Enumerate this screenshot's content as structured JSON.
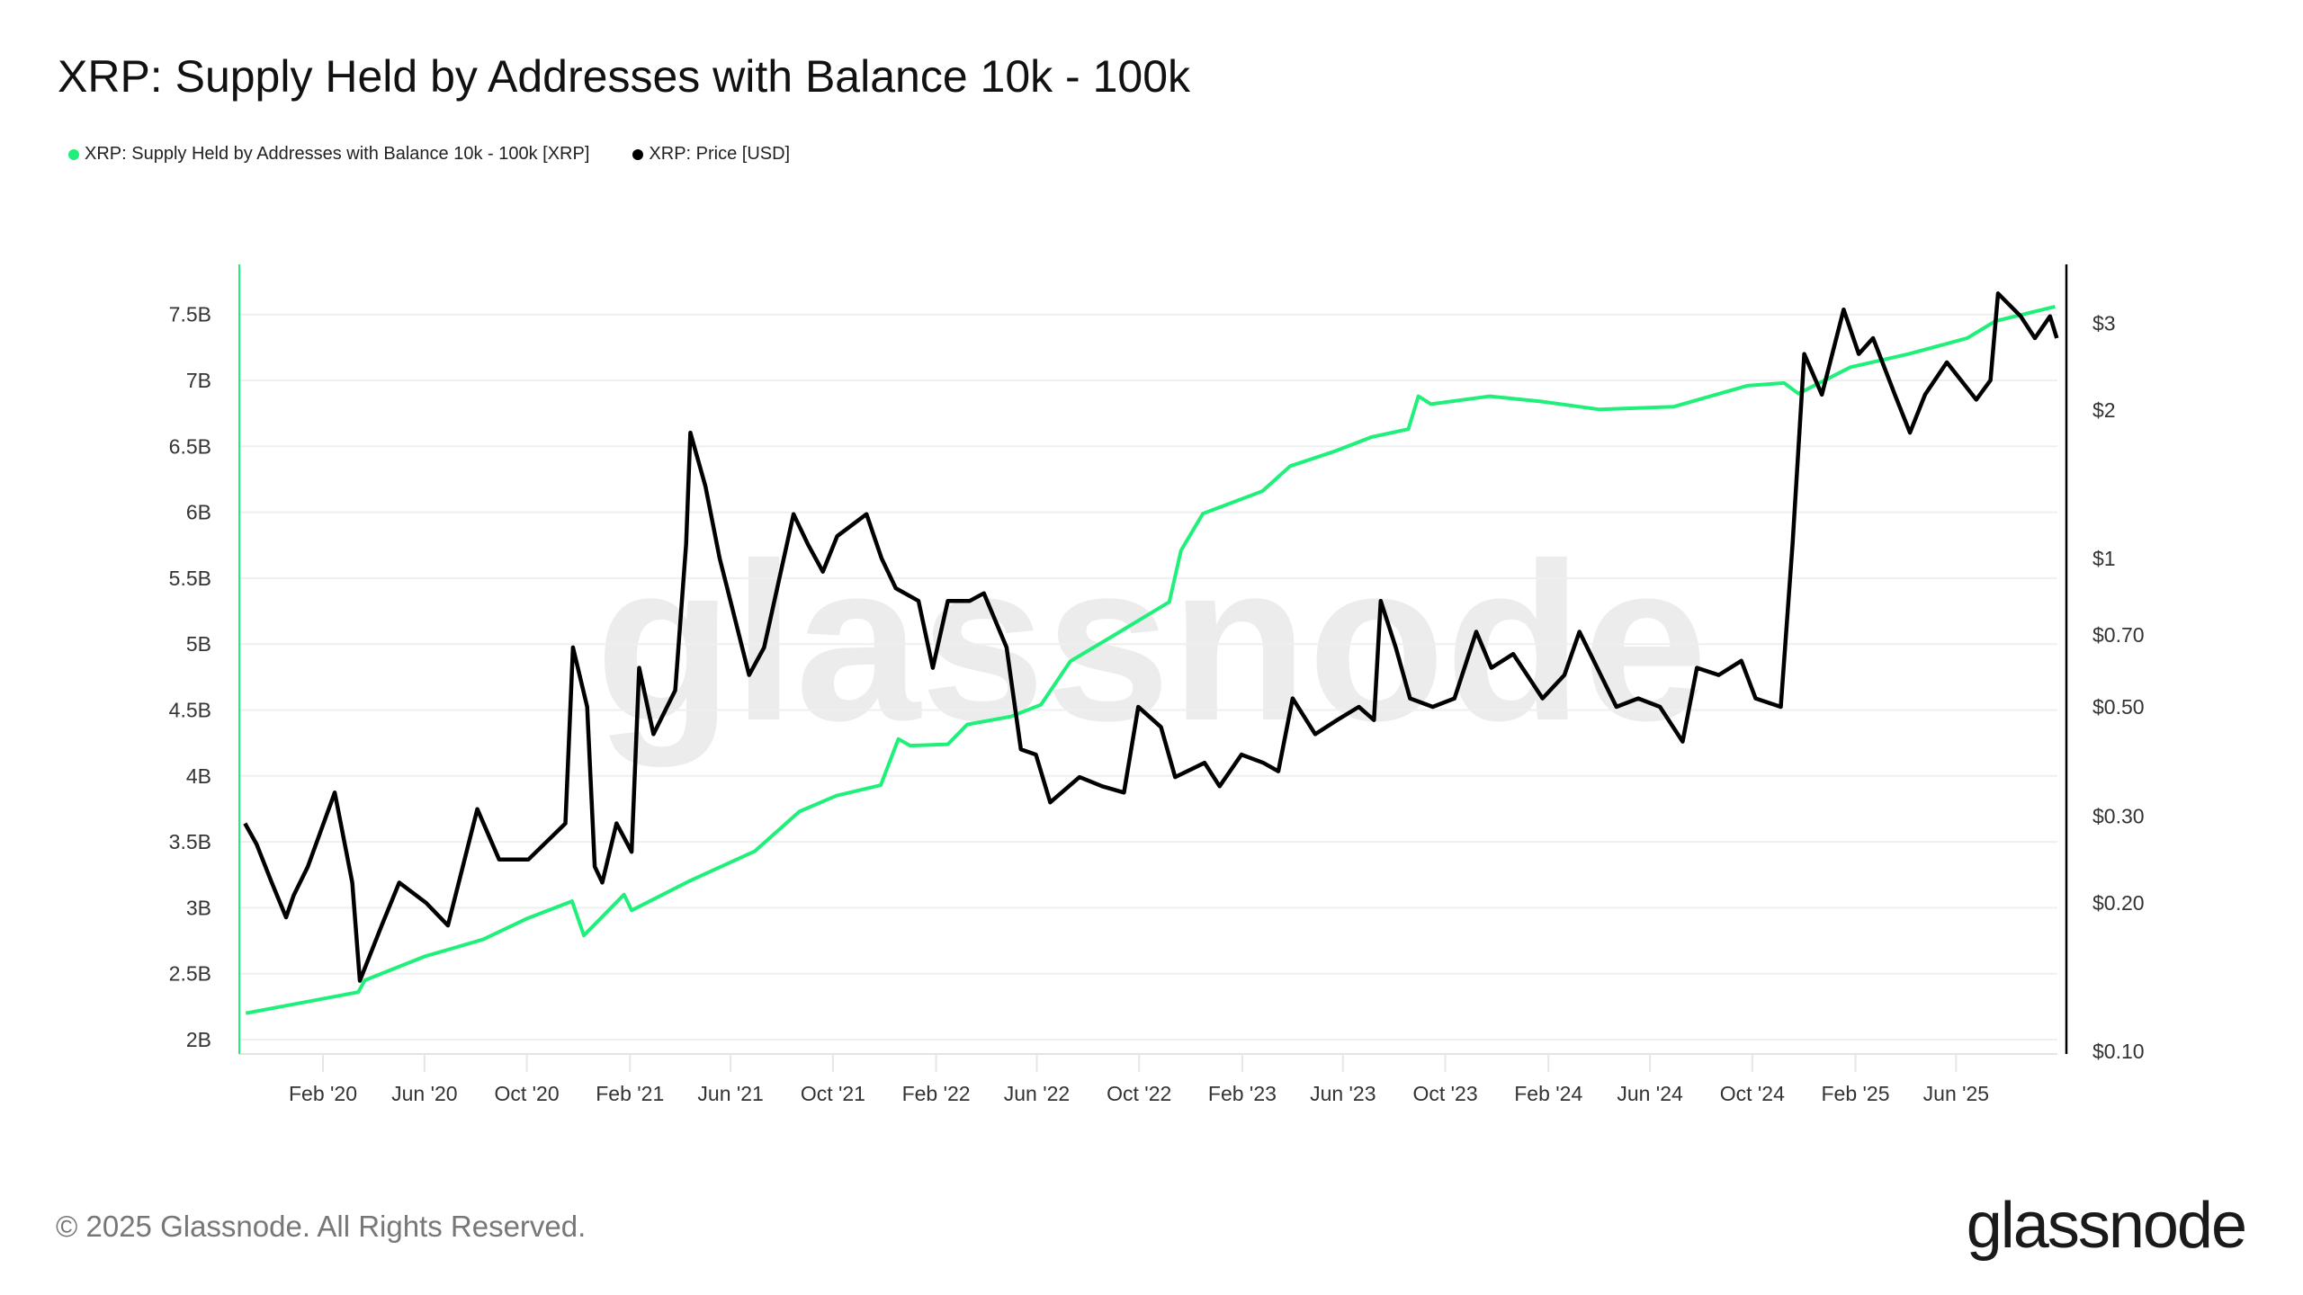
{
  "chart_data": {
    "type": "line",
    "title": "XRP: Supply Held by Addresses with Balance 10k - 100k",
    "legend_placement": "top-left",
    "grid": true,
    "x_ticks": [
      "Feb '20",
      "Jun '20",
      "Oct '20",
      "Feb '21",
      "Jun '21",
      "Oct '21",
      "Feb '22",
      "Jun '22",
      "Oct '22",
      "Feb '23",
      "Jun '23",
      "Oct '23",
      "Feb '24",
      "Jun '24",
      "Oct '24",
      "Feb '25",
      "Jun '25"
    ],
    "xlim": [
      "2019-10-31",
      "2025-10-05"
    ],
    "y_left": {
      "ticks": [
        2,
        2.5,
        3,
        3.5,
        4,
        4.5,
        5,
        5.5,
        6,
        6.5,
        7,
        7.5
      ],
      "tick_labels": [
        "2B",
        "2.5B",
        "3B",
        "3.5B",
        "4B",
        "4.5B",
        "5B",
        "5.5B",
        "6B",
        "6.5B",
        "7B",
        "7.5B"
      ],
      "unit": "billion XRP",
      "color": "#1ef07a"
    },
    "y_right": {
      "scale": "log",
      "ticks": [
        0.1,
        0.2,
        0.3,
        0.5,
        0.7,
        1,
        2,
        3
      ],
      "tick_labels": [
        "$0.10",
        "$0.20",
        "$0.30",
        "$0.50",
        "$0.70",
        "$1",
        "$2",
        "$3"
      ],
      "color": "#000000"
    },
    "series": [
      {
        "name": "XRP: Supply Held by Addresses with Balance 10k - 100k [XRP]",
        "axis": "left",
        "color": "#1ef07a",
        "x": [
          "2019-11-01",
          "2020-03-14",
          "2020-03-22",
          "2020-06-01",
          "2020-08-10",
          "2020-10-02",
          "2020-11-24",
          "2020-12-08",
          "2021-01-25",
          "2021-02-03",
          "2021-04-12",
          "2021-06-30",
          "2021-08-22",
          "2021-10-05",
          "2021-11-27",
          "2021-12-18",
          "2022-01-01",
          "2022-02-15",
          "2022-03-10",
          "2022-05-01",
          "2022-06-06",
          "2022-07-11",
          "2022-09-02",
          "2022-11-06",
          "2022-11-20",
          "2022-12-16",
          "2023-02-25",
          "2023-03-30",
          "2023-05-21",
          "2023-07-05",
          "2023-08-18",
          "2023-08-30",
          "2023-09-14",
          "2023-11-23",
          "2024-01-24",
          "2024-04-02",
          "2024-06-29",
          "2024-09-25",
          "2024-11-08",
          "2024-11-25",
          "2025-01-26",
          "2025-04-05",
          "2025-06-14",
          "2025-07-18",
          "2025-09-27"
        ],
        "values": [
          2.2,
          2.36,
          2.45,
          2.63,
          2.76,
          2.92,
          3.05,
          2.79,
          3.1,
          2.98,
          3.2,
          3.43,
          3.73,
          3.85,
          3.93,
          4.28,
          4.23,
          4.24,
          4.39,
          4.45,
          4.54,
          4.87,
          5.07,
          5.32,
          5.71,
          5.99,
          6.16,
          6.35,
          6.46,
          6.57,
          6.63,
          6.88,
          6.82,
          6.88,
          6.84,
          6.78,
          6.8,
          6.96,
          6.98,
          6.9,
          7.1,
          7.2,
          7.32,
          7.45,
          7.56
        ]
      },
      {
        "name": "XRP: Price [USD]",
        "axis": "right",
        "color": "#000000",
        "x": [
          "2019-10-31",
          "2019-11-14",
          "2019-12-02",
          "2019-12-19",
          "2019-12-28",
          "2020-01-14",
          "2020-02-15",
          "2020-03-07",
          "2020-03-16",
          "2020-04-11",
          "2020-05-02",
          "2020-06-03",
          "2020-06-29",
          "2020-08-03",
          "2020-08-29",
          "2020-10-03",
          "2020-11-16",
          "2020-11-25",
          "2020-12-12",
          "2020-12-21",
          "2020-12-30",
          "2021-01-16",
          "2021-02-03",
          "2021-02-12",
          "2021-03-01",
          "2021-03-27",
          "2021-04-09",
          "2021-04-14",
          "2021-05-02",
          "2021-05-19",
          "2021-05-28",
          "2021-06-23",
          "2021-07-11",
          "2021-08-15",
          "2021-09-01",
          "2021-09-19",
          "2021-10-06",
          "2021-11-10",
          "2021-11-28",
          "2021-12-15",
          "2022-01-11",
          "2022-01-28",
          "2022-02-15",
          "2022-03-13",
          "2022-03-30",
          "2022-04-26",
          "2022-05-13",
          "2022-05-31",
          "2022-06-17",
          "2022-07-22",
          "2022-08-18",
          "2022-09-13",
          "2022-09-30",
          "2022-10-27",
          "2022-11-13",
          "2022-12-18",
          "2023-01-05",
          "2023-01-31",
          "2023-02-26",
          "2023-03-16",
          "2023-04-02",
          "2023-04-29",
          "2023-05-25",
          "2023-06-20",
          "2023-07-08",
          "2023-07-16",
          "2023-08-03",
          "2023-08-20",
          "2023-09-16",
          "2023-10-12",
          "2023-11-07",
          "2023-11-25",
          "2023-12-21",
          "2024-01-25",
          "2024-02-20",
          "2024-03-09",
          "2024-03-26",
          "2024-04-22",
          "2024-05-18",
          "2024-06-13",
          "2024-07-10",
          "2024-07-27",
          "2024-08-22",
          "2024-09-18",
          "2024-10-05",
          "2024-11-04",
          "2024-11-18",
          "2024-12-02",
          "2024-12-23",
          "2025-01-18",
          "2025-02-05",
          "2025-02-22",
          "2025-03-20",
          "2025-04-07",
          "2025-04-25",
          "2025-05-21",
          "2025-06-25",
          "2025-07-12",
          "2025-07-21",
          "2025-08-17",
          "2025-09-03",
          "2025-09-21",
          "2025-09-29"
        ],
        "values": [
          0.29,
          0.263,
          0.22,
          0.187,
          0.207,
          0.237,
          0.335,
          0.22,
          0.139,
          0.18,
          0.22,
          0.2,
          0.18,
          0.31,
          0.245,
          0.245,
          0.29,
          0.66,
          0.5,
          0.237,
          0.22,
          0.29,
          0.254,
          0.6,
          0.44,
          0.54,
          1.07,
          1.8,
          1.4,
          1.0,
          0.87,
          0.58,
          0.66,
          1.23,
          1.07,
          0.94,
          1.11,
          1.23,
          1.0,
          0.87,
          0.82,
          0.6,
          0.82,
          0.82,
          0.85,
          0.66,
          0.41,
          0.4,
          0.32,
          0.36,
          0.345,
          0.335,
          0.5,
          0.455,
          0.36,
          0.385,
          0.345,
          0.4,
          0.385,
          0.37,
          0.52,
          0.44,
          0.47,
          0.5,
          0.47,
          0.82,
          0.66,
          0.52,
          0.5,
          0.52,
          0.71,
          0.6,
          0.64,
          0.52,
          0.58,
          0.71,
          0.62,
          0.5,
          0.52,
          0.5,
          0.425,
          0.6,
          0.58,
          0.62,
          0.52,
          0.5,
          1.07,
          2.6,
          2.15,
          3.2,
          2.6,
          2.8,
          2.15,
          1.8,
          2.15,
          2.5,
          2.1,
          2.3,
          3.45,
          3.1,
          2.8,
          3.1,
          2.8
        ]
      }
    ],
    "watermark": "glassnode"
  },
  "footer": {
    "copyright": "© 2025 Glassnode. All Rights Reserved.",
    "logo": "glassnode"
  }
}
